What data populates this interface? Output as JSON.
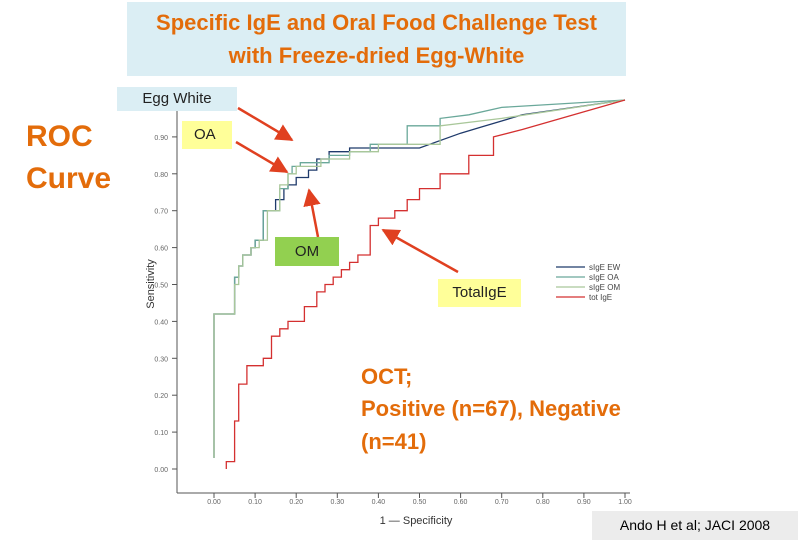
{
  "title": {
    "line1": "Specific IgE and Oral Food Challenge Test",
    "line2": "with Freeze-dried Egg-White"
  },
  "side_label": {
    "line1": "ROC",
    "line2": "Curve"
  },
  "callouts": {
    "egg_white": "Egg White",
    "oa": "OA",
    "om": "OM",
    "total_ige": "TotalIgE"
  },
  "oct_note": {
    "line1": "OCT;",
    "line2": "Positive (n=67), Negative",
    "line3": "(n=41)"
  },
  "citation": "Ando H et al; JACI 2008",
  "colors": {
    "title_bg": "#dbeef4",
    "accent": "#e36c0a",
    "callout_bg": "#ffff99",
    "callout_om_bg": "#92d050",
    "arrow": "#e04020"
  },
  "chart_data": {
    "type": "line",
    "xlabel": "1 — Specificity",
    "ylabel": "Sensitivity",
    "xlim": [
      0,
      1
    ],
    "ylim": [
      0,
      1
    ],
    "x_ticks": [
      "0.00",
      "0.10",
      "0.20",
      "0.30",
      "0.40",
      "0.50",
      "0.60",
      "0.70",
      "0.80",
      "0.90",
      "1.00"
    ],
    "y_ticks": [
      "0.00",
      "0.10",
      "0.20",
      "0.30",
      "0.40",
      "0.50",
      "0.60",
      "0.70",
      "0.80",
      "0.90",
      "1.00"
    ],
    "legend_position": "right",
    "series": [
      {
        "name": "sIgE EW",
        "color": "#1f3a6b",
        "points": [
          [
            0,
            0.03
          ],
          [
            0,
            0.42
          ],
          [
            0.05,
            0.42
          ],
          [
            0.05,
            0.48
          ],
          [
            0.05,
            0.52
          ],
          [
            0.06,
            0.52
          ],
          [
            0.06,
            0.55
          ],
          [
            0.07,
            0.55
          ],
          [
            0.07,
            0.58
          ],
          [
            0.09,
            0.58
          ],
          [
            0.09,
            0.6
          ],
          [
            0.1,
            0.6
          ],
          [
            0.1,
            0.62
          ],
          [
            0.12,
            0.62
          ],
          [
            0.12,
            0.7
          ],
          [
            0.15,
            0.7
          ],
          [
            0.15,
            0.73
          ],
          [
            0.17,
            0.73
          ],
          [
            0.17,
            0.76
          ],
          [
            0.18,
            0.76
          ],
          [
            0.18,
            0.77
          ],
          [
            0.2,
            0.77
          ],
          [
            0.2,
            0.79
          ],
          [
            0.23,
            0.79
          ],
          [
            0.23,
            0.81
          ],
          [
            0.25,
            0.81
          ],
          [
            0.25,
            0.84
          ],
          [
            0.28,
            0.84
          ],
          [
            0.28,
            0.86
          ],
          [
            0.33,
            0.86
          ],
          [
            0.33,
            0.87
          ],
          [
            0.5,
            0.87
          ],
          [
            0.6,
            0.91
          ],
          [
            0.75,
            0.96
          ],
          [
            1,
            1
          ]
        ]
      },
      {
        "name": "sIgE OA",
        "color": "#6aa89a",
        "points": [
          [
            0,
            0.03
          ],
          [
            0,
            0.42
          ],
          [
            0.05,
            0.42
          ],
          [
            0.05,
            0.48
          ],
          [
            0.05,
            0.52
          ],
          [
            0.06,
            0.52
          ],
          [
            0.06,
            0.55
          ],
          [
            0.07,
            0.55
          ],
          [
            0.07,
            0.58
          ],
          [
            0.09,
            0.58
          ],
          [
            0.09,
            0.6
          ],
          [
            0.1,
            0.6
          ],
          [
            0.1,
            0.62
          ],
          [
            0.12,
            0.62
          ],
          [
            0.12,
            0.7
          ],
          [
            0.16,
            0.7
          ],
          [
            0.16,
            0.76
          ],
          [
            0.18,
            0.76
          ],
          [
            0.18,
            0.8
          ],
          [
            0.19,
            0.8
          ],
          [
            0.19,
            0.82
          ],
          [
            0.21,
            0.82
          ],
          [
            0.21,
            0.83
          ],
          [
            0.28,
            0.83
          ],
          [
            0.28,
            0.85
          ],
          [
            0.33,
            0.85
          ],
          [
            0.33,
            0.86
          ],
          [
            0.38,
            0.86
          ],
          [
            0.38,
            0.88
          ],
          [
            0.47,
            0.88
          ],
          [
            0.47,
            0.93
          ],
          [
            0.55,
            0.93
          ],
          [
            0.55,
            0.95
          ],
          [
            0.62,
            0.96
          ],
          [
            0.7,
            0.98
          ],
          [
            1,
            1
          ]
        ]
      },
      {
        "name": "sIgE OM",
        "color": "#a9c79a",
        "points": [
          [
            0,
            0.03
          ],
          [
            0,
            0.42
          ],
          [
            0.05,
            0.42
          ],
          [
            0.05,
            0.5
          ],
          [
            0.06,
            0.5
          ],
          [
            0.06,
            0.55
          ],
          [
            0.07,
            0.55
          ],
          [
            0.07,
            0.58
          ],
          [
            0.09,
            0.58
          ],
          [
            0.09,
            0.6
          ],
          [
            0.11,
            0.6
          ],
          [
            0.11,
            0.62
          ],
          [
            0.13,
            0.62
          ],
          [
            0.13,
            0.7
          ],
          [
            0.16,
            0.7
          ],
          [
            0.16,
            0.77
          ],
          [
            0.18,
            0.77
          ],
          [
            0.18,
            0.8
          ],
          [
            0.2,
            0.8
          ],
          [
            0.2,
            0.82
          ],
          [
            0.26,
            0.82
          ],
          [
            0.26,
            0.84
          ],
          [
            0.33,
            0.84
          ],
          [
            0.33,
            0.86
          ],
          [
            0.4,
            0.86
          ],
          [
            0.4,
            0.88
          ],
          [
            0.55,
            0.88
          ],
          [
            0.55,
            0.93
          ],
          [
            0.7,
            0.95
          ],
          [
            1,
            1
          ]
        ]
      },
      {
        "name": "tot IgE",
        "color": "#d43030",
        "points": [
          [
            0.03,
            0
          ],
          [
            0.03,
            0.02
          ],
          [
            0.05,
            0.02
          ],
          [
            0.05,
            0.13
          ],
          [
            0.06,
            0.13
          ],
          [
            0.06,
            0.23
          ],
          [
            0.08,
            0.23
          ],
          [
            0.08,
            0.28
          ],
          [
            0.12,
            0.28
          ],
          [
            0.12,
            0.3
          ],
          [
            0.14,
            0.3
          ],
          [
            0.14,
            0.36
          ],
          [
            0.16,
            0.36
          ],
          [
            0.16,
            0.38
          ],
          [
            0.18,
            0.38
          ],
          [
            0.18,
            0.4
          ],
          [
            0.22,
            0.4
          ],
          [
            0.22,
            0.44
          ],
          [
            0.25,
            0.44
          ],
          [
            0.25,
            0.48
          ],
          [
            0.27,
            0.48
          ],
          [
            0.27,
            0.5
          ],
          [
            0.29,
            0.5
          ],
          [
            0.29,
            0.52
          ],
          [
            0.31,
            0.52
          ],
          [
            0.31,
            0.54
          ],
          [
            0.33,
            0.54
          ],
          [
            0.33,
            0.56
          ],
          [
            0.35,
            0.56
          ],
          [
            0.35,
            0.58
          ],
          [
            0.38,
            0.58
          ],
          [
            0.38,
            0.66
          ],
          [
            0.4,
            0.66
          ],
          [
            0.4,
            0.68
          ],
          [
            0.44,
            0.68
          ],
          [
            0.44,
            0.7
          ],
          [
            0.47,
            0.7
          ],
          [
            0.47,
            0.73
          ],
          [
            0.5,
            0.73
          ],
          [
            0.5,
            0.76
          ],
          [
            0.55,
            0.76
          ],
          [
            0.55,
            0.8
          ],
          [
            0.62,
            0.8
          ],
          [
            0.62,
            0.85
          ],
          [
            0.68,
            0.85
          ],
          [
            0.68,
            0.9
          ],
          [
            0.75,
            0.92
          ],
          [
            1,
            1
          ]
        ]
      }
    ]
  }
}
